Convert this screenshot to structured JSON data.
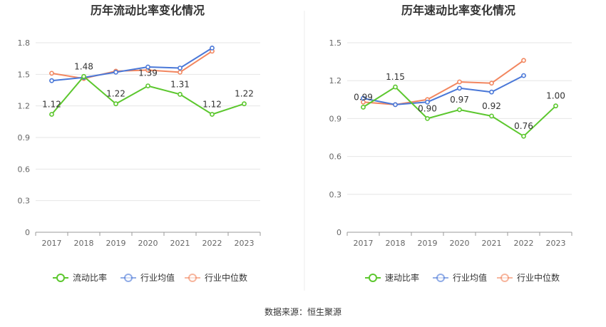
{
  "source": "数据来源：恒生聚源",
  "chart_data": [
    {
      "type": "line",
      "title": "历年流动比率变化情况",
      "categories": [
        "2017",
        "2018",
        "2019",
        "2020",
        "2021",
        "2022",
        "2023"
      ],
      "yticks": [
        "0",
        "0.3",
        "0.6",
        "0.9",
        "1.2",
        "1.5",
        "1.8"
      ],
      "ylim": [
        0,
        1.8
      ],
      "grid": true,
      "legend_position": "bottom",
      "series": [
        {
          "name": "流动比率",
          "color": "#5cc72e",
          "values": [
            1.12,
            1.48,
            1.22,
            1.39,
            1.31,
            1.12,
            1.22
          ],
          "labels": [
            "1.12",
            "1.48",
            "1.22",
            "1.39",
            "1.31",
            "1.12",
            "1.22"
          ]
        },
        {
          "name": "行业均值",
          "color": "#4a78d8",
          "values": [
            1.44,
            1.47,
            1.52,
            1.57,
            1.56,
            1.75,
            null
          ]
        },
        {
          "name": "行业中位数",
          "color": "#f2865f",
          "values": [
            1.51,
            1.46,
            1.53,
            1.54,
            1.52,
            1.72,
            null
          ]
        }
      ]
    },
    {
      "type": "line",
      "title": "历年速动比率变化情况",
      "categories": [
        "2017",
        "2018",
        "2019",
        "2020",
        "2021",
        "2022",
        "2023"
      ],
      "yticks": [
        "0",
        "0.3",
        "0.6",
        "0.9",
        "1.2",
        "1.5"
      ],
      "ylim": [
        0,
        1.5
      ],
      "grid": true,
      "legend_position": "bottom",
      "series": [
        {
          "name": "速动比率",
          "color": "#5cc72e",
          "values": [
            0.99,
            1.15,
            0.9,
            0.97,
            0.92,
            0.76,
            1.0
          ],
          "labels": [
            "0.99",
            "1.15",
            "0.90",
            "0.97",
            "0.92",
            "0.76",
            "1.00"
          ]
        },
        {
          "name": "行业均值",
          "color": "#4a78d8",
          "values": [
            1.06,
            1.01,
            1.03,
            1.14,
            1.11,
            1.24,
            null
          ]
        },
        {
          "name": "行业中位数",
          "color": "#f2865f",
          "values": [
            1.03,
            1.01,
            1.05,
            1.19,
            1.18,
            1.36,
            null
          ]
        }
      ]
    }
  ]
}
